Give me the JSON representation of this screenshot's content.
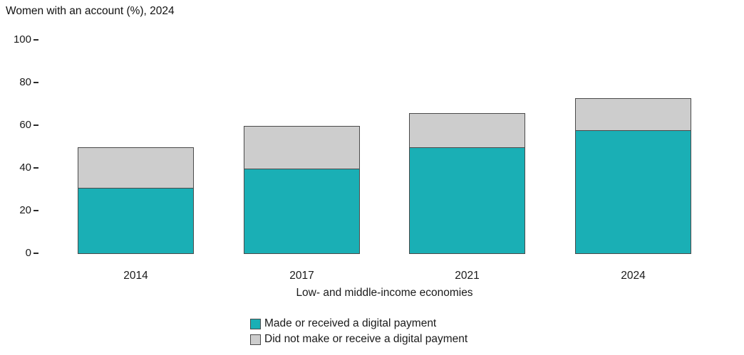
{
  "chart_data": {
    "type": "bar",
    "stacked": true,
    "title": "Women with an account (%), 2024",
    "xlabel": "Low- and middle-income economies",
    "ylabel": "",
    "categories": [
      "2014",
      "2017",
      "2021",
      "2024"
    ],
    "series": [
      {
        "name": "Made or received a digital payment",
        "color": "#1AAFB5",
        "values": [
          31,
          40,
          50,
          58
        ]
      },
      {
        "name": "Did not make or receive a digital payment",
        "color": "#CDCDCD",
        "values": [
          19,
          20,
          16,
          15
        ]
      }
    ],
    "stack_totals": [
      50,
      60,
      66,
      73
    ],
    "ylim": [
      0,
      100
    ],
    "yticks": [
      0,
      20,
      40,
      60,
      80,
      100
    ],
    "grid": false,
    "legend_position": "bottom",
    "outline_color": "#4A4A4A",
    "background_color": "#FFFFFF"
  }
}
